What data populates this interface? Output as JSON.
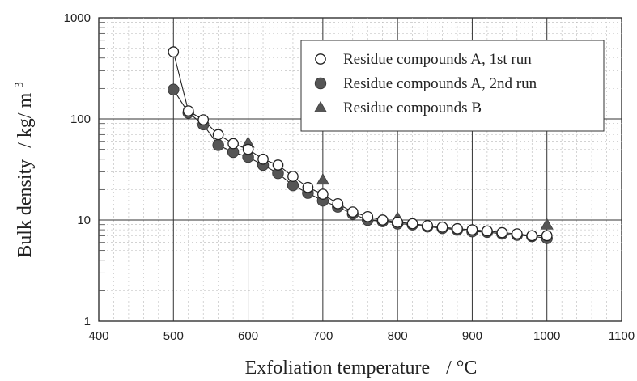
{
  "chart_data": {
    "type": "scatter",
    "title": "",
    "xlabel": "Exfoliation temperature",
    "xlabel_unit": "/ °C",
    "ylabel": "Bulk density",
    "ylabel_unit": "/ kg/ m",
    "ylabel_unit_exp": "3",
    "xlim": [
      400,
      1100
    ],
    "ylim": [
      1,
      1000
    ],
    "yscale": "log",
    "grid": true,
    "legend_position": "top-right",
    "x_ticks": [
      "400",
      "500",
      "600",
      "700",
      "800",
      "900",
      "1000",
      "1100"
    ],
    "y_ticks": [
      "1",
      "10",
      "100",
      "1000"
    ],
    "series": [
      {
        "name": "Residue compounds A, 1st run",
        "marker": "open-circle",
        "connected": true,
        "x": [
          500,
          520,
          540,
          560,
          580,
          600,
          620,
          640,
          660,
          680,
          700,
          720,
          740,
          760,
          780,
          800,
          820,
          840,
          860,
          880,
          900,
          920,
          940,
          960,
          980,
          1000
        ],
        "y": [
          460,
          120,
          98,
          70,
          57,
          50,
          40,
          35,
          27,
          21,
          18,
          14.5,
          12,
          10.8,
          10,
          9.5,
          9.2,
          8.8,
          8.5,
          8.2,
          8,
          7.8,
          7.5,
          7.3,
          7,
          7
        ]
      },
      {
        "name": "Residue compounds A, 2nd run",
        "marker": "filled-circle",
        "connected": true,
        "x": [
          500,
          520,
          540,
          560,
          580,
          600,
          620,
          640,
          660,
          680,
          700,
          720,
          740,
          760,
          780,
          800,
          820,
          840,
          860,
          880,
          900,
          920,
          940,
          960,
          980,
          1000
        ],
        "y": [
          195,
          115,
          88,
          55,
          47,
          42,
          35,
          29,
          22,
          18.5,
          15.5,
          13.5,
          11.5,
          10,
          9.7,
          9.2,
          9,
          8.6,
          8.3,
          8,
          7.7,
          7.6,
          7.3,
          7.1,
          6.9,
          6.6
        ]
      },
      {
        "name": "Residue compounds B",
        "marker": "filled-triangle",
        "connected": false,
        "x": [
          600,
          700,
          800,
          1000
        ],
        "y": [
          58,
          25,
          10.5,
          9
        ]
      }
    ]
  }
}
